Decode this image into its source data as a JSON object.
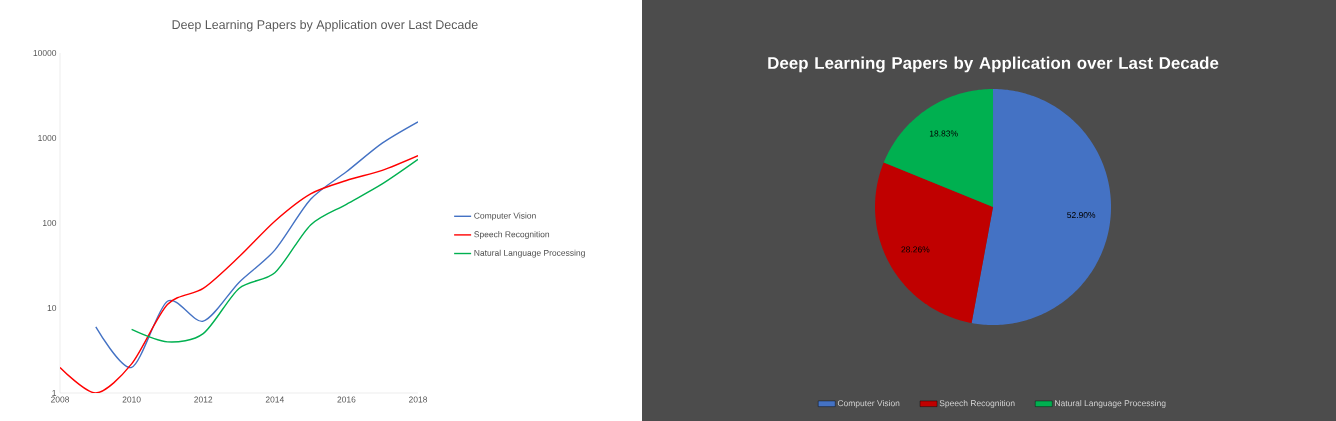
{
  "chart_data": [
    {
      "type": "line",
      "title": "Deep Learning Papers by Application over Last Decade",
      "x": [
        2008,
        2009,
        2010,
        2011,
        2012,
        2013,
        2014,
        2015,
        2016,
        2017,
        2018
      ],
      "series": [
        {
          "name": "Computer Vision",
          "color": "#4472c4",
          "values": [
            null,
            6,
            2,
            12,
            7,
            20,
            48,
            190,
            400,
            870,
            1550
          ]
        },
        {
          "name": "Speech Recognition",
          "color": "#ff0000",
          "values": [
            2,
            1,
            2.2,
            11,
            17,
            40,
            105,
            220,
            316,
            417,
            620
          ]
        },
        {
          "name": "Natural Language Processing",
          "color": "#00b050",
          "values": [
            null,
            null,
            5.6,
            4,
            5,
            17,
            26,
            95,
            166,
            288,
            560
          ]
        }
      ],
      "xlim": [
        2008,
        2018
      ],
      "xticks": [
        2008,
        2010,
        2012,
        2014,
        2016,
        2018
      ],
      "ylim": [
        1,
        10000
      ],
      "yticks": [
        1,
        10,
        100,
        1000,
        10000
      ],
      "log": "y",
      "legend": "right",
      "marker": "none"
    },
    {
      "type": "pie",
      "title": "Deep Learning Papers by Application over Last Decade",
      "categories": [
        "Computer Vision",
        "Speech Recognition",
        "Natural Language Processing"
      ],
      "values": [
        52.9,
        28.26,
        18.83
      ],
      "colors": [
        "#4472c4",
        "#c00000",
        "#00b050"
      ],
      "value_labels": [
        "52.90%",
        "28.26%",
        "18.83%"
      ],
      "legend": "bottom"
    }
  ]
}
